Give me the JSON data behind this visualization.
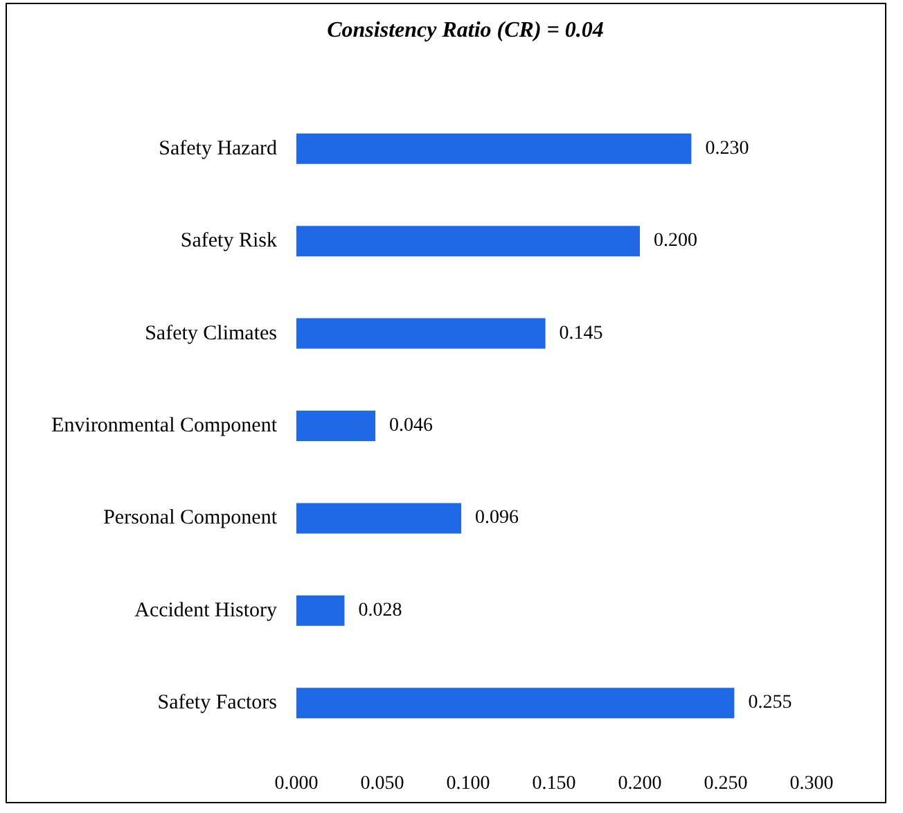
{
  "chart_data": {
    "type": "bar",
    "orientation": "horizontal",
    "title": "Consistency Ratio (CR) = 0.04",
    "categories": [
      "Safety Hazard",
      "Safety Risk",
      "Safety Climates",
      "Environmental Component",
      "Personal Component",
      "Accident History",
      "Safety Factors"
    ],
    "values": [
      0.23,
      0.2,
      0.145,
      0.046,
      0.096,
      0.028,
      0.255
    ],
    "value_labels": [
      "0.230",
      "0.200",
      "0.145",
      "0.046",
      "0.096",
      "0.028",
      "0.255"
    ],
    "color": "#1f69e6",
    "xlim": [
      0,
      0.3
    ],
    "xticks": [
      {
        "value": 0,
        "label": "0.000"
      },
      {
        "value": 0.05,
        "label": "0.050"
      },
      {
        "value": 0.1,
        "label": "0.100"
      },
      {
        "value": 0.15,
        "label": "0.150"
      },
      {
        "value": 0.2,
        "label": "0.200"
      },
      {
        "value": 0.25,
        "label": "0.250"
      },
      {
        "value": 0.3,
        "label": "0.300"
      }
    ],
    "grid": false
  }
}
